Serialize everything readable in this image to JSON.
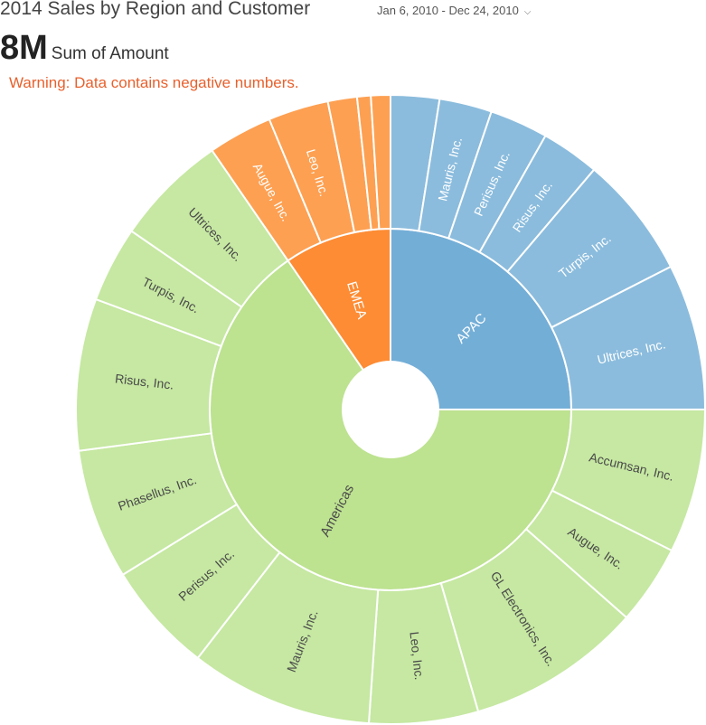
{
  "header": {
    "title": "2014 Sales by Region and Customer",
    "date_range": "Jan 6, 2010 - Dec 24, 2010",
    "date_range_icon": "chevron-down-icon",
    "kpi_value": "8M",
    "kpi_label": "Sum of Amount",
    "warning": "Warning: Data contains negative numbers."
  },
  "colors": {
    "warning": "#e8602c",
    "label_dark": "#4a4a4a",
    "label_light": "#ffffff"
  },
  "chart_data": {
    "type": "sunburst",
    "title": "2014 Sales by Region and Customer",
    "measure": "Sum of Amount",
    "total": "8M",
    "regions": [
      {
        "name": "APAC",
        "value": 25,
        "color": "#73aed7",
        "child_color": "#8bbcdd",
        "children": [
          {
            "name": "",
            "value": 2.5
          },
          {
            "name": "Mauris, Inc.",
            "value": 2.7
          },
          {
            "name": "Perisus, Inc.",
            "value": 3.0
          },
          {
            "name": "Risus, Inc.",
            "value": 3.0
          },
          {
            "name": "Turpis, Inc.",
            "value": 6.3
          },
          {
            "name": "Ultrices, Inc.",
            "value": 7.5
          }
        ]
      },
      {
        "name": "Americas",
        "value": 65.4,
        "color": "#bde290",
        "child_color": "#c6e8a2",
        "children": [
          {
            "name": "Accumsan, Inc.",
            "value": 7.4
          },
          {
            "name": "Augue, Inc.",
            "value": 4.1
          },
          {
            "name": "GL Electronics, Inc.",
            "value": 9.0
          },
          {
            "name": "Leo, Inc.",
            "value": 5.6
          },
          {
            "name": "Mauris, Inc.",
            "value": 9.4
          },
          {
            "name": "Perisus, Inc.",
            "value": 5.7
          },
          {
            "name": "Phasellus, Inc.",
            "value": 6.7
          },
          {
            "name": "Risus, Inc.",
            "value": 7.8
          },
          {
            "name": "Turpis, Inc.",
            "value": 3.9
          },
          {
            "name": "Ultrices, Inc.",
            "value": 5.8
          }
        ]
      },
      {
        "name": "EMEA",
        "value": 9.6,
        "color": "#fd8c34",
        "child_color": "#fda052",
        "children": [
          {
            "name": "Augue, Inc.",
            "value": 3.3
          },
          {
            "name": "Leo, Inc.",
            "value": 3.1
          },
          {
            "name": "",
            "value": 1.5
          },
          {
            "name": "",
            "value": 0.7
          },
          {
            "name": "",
            "value": 1.0
          }
        ]
      }
    ]
  }
}
